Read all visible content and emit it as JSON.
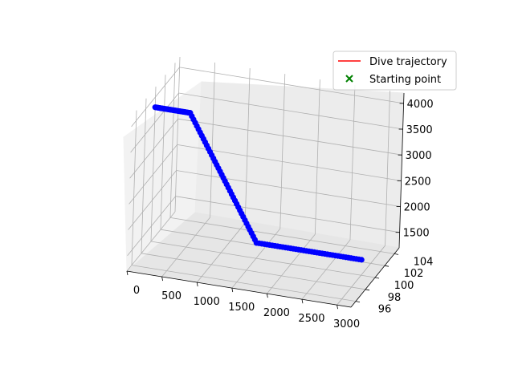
{
  "chart_data": {
    "type": "line",
    "projection": "3d",
    "title": "",
    "xlabel": "",
    "ylabel": "",
    "zlabel": "",
    "xlim": [
      0,
      3200
    ],
    "ylim": [
      95,
      105
    ],
    "zlim": [
      1200,
      4200
    ],
    "x_ticks": [
      {
        "value": 0,
        "label": "0"
      },
      {
        "value": 500,
        "label": "500"
      },
      {
        "value": 1000,
        "label": "1000"
      },
      {
        "value": 1500,
        "label": "1500"
      },
      {
        "value": 2000,
        "label": "2000"
      },
      {
        "value": 2500,
        "label": "2500"
      },
      {
        "value": 3000,
        "label": "3000"
      }
    ],
    "y_ticks": [
      {
        "value": 96,
        "label": "96"
      },
      {
        "value": 98,
        "label": "98"
      },
      {
        "value": 100,
        "label": "100"
      },
      {
        "value": 102,
        "label": "102"
      },
      {
        "value": 104,
        "label": "104"
      }
    ],
    "z_ticks": [
      {
        "value": 1500,
        "label": "1500"
      },
      {
        "value": 2000,
        "label": "2000"
      },
      {
        "value": 2500,
        "label": "2500"
      },
      {
        "value": 3000,
        "label": "3000"
      },
      {
        "value": 3500,
        "label": "3500"
      },
      {
        "value": 4000,
        "label": "4000"
      }
    ],
    "grid": true,
    "legend": {
      "position": "top-right",
      "entries": [
        {
          "label": "Dive trajectory",
          "marker": "line",
          "color": "#ff0000"
        },
        {
          "label": "Starting point",
          "marker": "x",
          "color": "#008000"
        }
      ]
    },
    "series": [
      {
        "name": "Dive trajectory",
        "color": "#ff0000",
        "marker_color": "#0000ff",
        "points": [
          {
            "x": 0,
            "y": 100,
            "z": 3800
          },
          {
            "x": 500,
            "y": 100,
            "z": 3800
          },
          {
            "x": 1500,
            "y": 100,
            "z": 1500
          },
          {
            "x": 3000,
            "y": 100,
            "z": 1500
          }
        ]
      }
    ],
    "start_point": {
      "x": 0,
      "y": 100,
      "z": 3800,
      "color": "#008000"
    }
  }
}
